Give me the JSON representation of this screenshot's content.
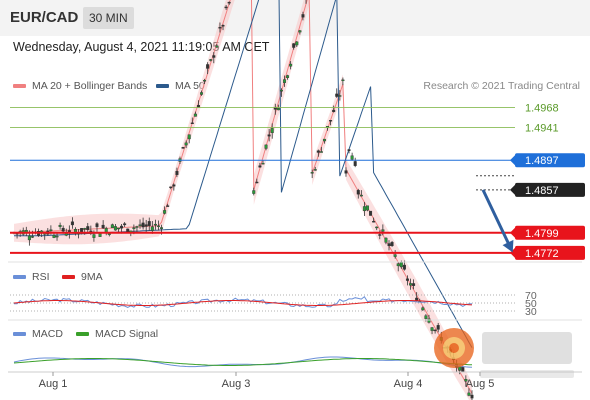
{
  "header": {
    "symbol": "EUR/CAD",
    "timeframe": "30 MIN"
  },
  "datetime": "Wednesday, August 4, 2021 11:19:05 AM CET",
  "credit": "Research © 2021 Trading Central",
  "legends": {
    "price": [
      {
        "label": "MA 20 + Bollinger Bands",
        "color": "#f08080"
      },
      {
        "label": "MA 50",
        "color": "#2c5a8c"
      }
    ],
    "rsi": [
      {
        "label": "RSI",
        "color": "#6a8fd8"
      },
      {
        "label": "9MA",
        "color": "#e02020"
      }
    ],
    "macd": [
      {
        "label": "MACD",
        "color": "#6a8fd8"
      },
      {
        "label": "MACD Signal",
        "color": "#3aa02a"
      }
    ]
  },
  "chart_data": {
    "type": "candlestick",
    "ylim": [
      1.4765,
      1.4985
    ],
    "x_ticks": [
      "Aug 1",
      "Aug 3",
      "Aug 4",
      "Aug 5"
    ],
    "levels": [
      {
        "value": 1.4968,
        "label": "1.4968",
        "color": "#88bb55",
        "kind": "resistance-text"
      },
      {
        "value": 1.4941,
        "label": "1.4941",
        "color": "#88bb55",
        "kind": "resistance-text"
      },
      {
        "value": 1.4897,
        "label": "1.4897",
        "color": "#1e6fd9",
        "kind": "pivot"
      },
      {
        "value": 1.4857,
        "label": "1.4857",
        "color": "#222222",
        "kind": "last-price"
      },
      {
        "value": 1.4799,
        "label": "1.4799",
        "color": "#e8141c",
        "kind": "support"
      },
      {
        "value": 1.4772,
        "label": "1.4772",
        "color": "#e8141c",
        "kind": "support"
      }
    ],
    "rsi_levels": [
      "70",
      "50",
      "30"
    ],
    "forecast_arrow": {
      "from": 1.4857,
      "to": 1.4772
    }
  }
}
